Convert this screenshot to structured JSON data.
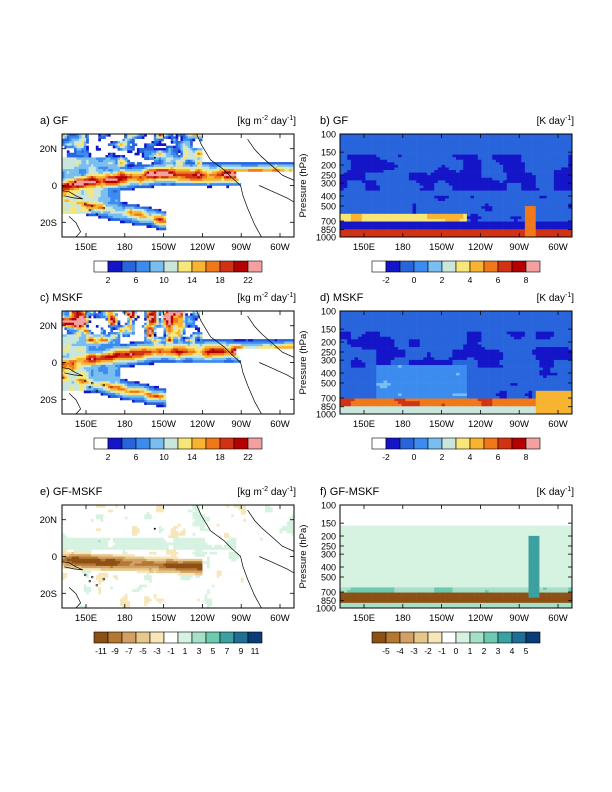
{
  "colors": {
    "precip_scale": [
      "#ffffff",
      "#1414c8",
      "#2864dc",
      "#3c8cf0",
      "#78bef0",
      "#c8e6dc",
      "#f8e678",
      "#f8b430",
      "#f07818",
      "#d23214",
      "#b40000",
      "#f4a0a0"
    ],
    "heating_scale": [
      "#ffffff",
      "#1414c8",
      "#2864dc",
      "#3c8cf0",
      "#78bef0",
      "#c8e6dc",
      "#f8e678",
      "#f8b430",
      "#f07818",
      "#d23214",
      "#b40000",
      "#f4a0a0"
    ],
    "diff_scale": [
      "#8c5014",
      "#b47832",
      "#d2a064",
      "#e6c88c",
      "#f6e6b8",
      "#ffffff",
      "#d6f2e0",
      "#a6e0c8",
      "#6ccab0",
      "#3ca0a0",
      "#1e6e96",
      "#0a3c78"
    ],
    "coast": "#000000"
  },
  "chart_data": [
    {
      "type": "heatmap",
      "panel": "a",
      "title": "a) GF",
      "units_label": "[kg m-2 day-1]",
      "units_parts": {
        "pre": "[kg m",
        "sup1": "-2",
        "mid": " day",
        "sup2": "-1",
        "post": "]"
      },
      "x_ticks": [
        "150E",
        "180",
        "150W",
        "120W",
        "90W",
        "60W"
      ],
      "y_ticks": [
        "20N",
        "0",
        "20S"
      ],
      "colorbar_labels": [
        "2",
        "6",
        "10",
        "14",
        "18",
        "22"
      ],
      "colorbar_levels": [
        2,
        4,
        6,
        8,
        10,
        12,
        14,
        16,
        18,
        20,
        22
      ],
      "pattern": "rain"
    },
    {
      "type": "heatmap",
      "panel": "b",
      "title": "b) GF",
      "units_label": "[K day-1]",
      "units_parts": {
        "pre": "[K day",
        "sup1": "-1",
        "post": "]"
      },
      "x_ticks": [
        "150E",
        "180",
        "150W",
        "120W",
        "90W",
        "60W"
      ],
      "y_ticks": [
        "100",
        "150",
        "200",
        "250",
        "300",
        "400",
        "500",
        "700",
        "850",
        "1000"
      ],
      "ylabel": "Pressure (hPa)",
      "colorbar_labels": [
        "-2",
        "0",
        "2",
        "4",
        "6",
        "8"
      ],
      "colorbar_levels": [
        -2,
        -1,
        0,
        1,
        2,
        3,
        4,
        5,
        6,
        7,
        8
      ],
      "pattern": "heat_gf"
    },
    {
      "type": "heatmap",
      "panel": "c",
      "title": "c) MSKF",
      "units_label": "[kg m-2 day-1]",
      "units_parts": {
        "pre": "[kg m",
        "sup1": "-2",
        "mid": " day",
        "sup2": "-1",
        "post": "]"
      },
      "x_ticks": [
        "150E",
        "180",
        "150W",
        "120W",
        "90W",
        "60W"
      ],
      "y_ticks": [
        "20N",
        "0",
        "20S"
      ],
      "colorbar_labels": [
        "2",
        "6",
        "10",
        "14",
        "18",
        "22"
      ],
      "colorbar_levels": [
        2,
        4,
        6,
        8,
        10,
        12,
        14,
        16,
        18,
        20,
        22
      ],
      "pattern": "rain_mskf"
    },
    {
      "type": "heatmap",
      "panel": "d",
      "title": "d) MSKF",
      "units_label": "[K day-1]",
      "units_parts": {
        "pre": "[K day",
        "sup1": "-1",
        "post": "]"
      },
      "x_ticks": [
        "150E",
        "180",
        "150W",
        "120W",
        "90W",
        "60W"
      ],
      "y_ticks": [
        "100",
        "150",
        "200",
        "250",
        "300",
        "400",
        "500",
        "700",
        "850",
        "1000"
      ],
      "ylabel": "Pressure (hPa)",
      "colorbar_labels": [
        "-2",
        "0",
        "2",
        "4",
        "6",
        "8"
      ],
      "colorbar_levels": [
        -2,
        -1,
        0,
        1,
        2,
        3,
        4,
        5,
        6,
        7,
        8
      ],
      "pattern": "heat_mskf"
    },
    {
      "type": "heatmap",
      "panel": "e",
      "title": "e) GF-MSKF",
      "units_label": "[kg m-2 day-1]",
      "units_parts": {
        "pre": "[kg m",
        "sup1": "-2",
        "mid": " day",
        "sup2": "-1",
        "post": "]"
      },
      "x_ticks": [
        "150E",
        "180",
        "150W",
        "120W",
        "90W",
        "60W"
      ],
      "y_ticks": [
        "20N",
        "0",
        "20S"
      ],
      "colorbar_labels": [
        "-11",
        "-9",
        "-7",
        "-5",
        "-3",
        "-1",
        "1",
        "3",
        "5",
        "7",
        "9",
        "11"
      ],
      "colorbar_levels": [
        -11,
        -9,
        -7,
        -5,
        -3,
        -1,
        1,
        3,
        5,
        7,
        9,
        11
      ],
      "pattern": "rain_diff"
    },
    {
      "type": "heatmap",
      "panel": "f",
      "title": "f) GF-MSKF",
      "units_label": "[K day-1]",
      "units_parts": {
        "pre": "[K day",
        "sup1": "-1",
        "post": "]"
      },
      "x_ticks": [
        "150E",
        "180",
        "150W",
        "120W",
        "90W",
        "60W"
      ],
      "y_ticks": [
        "100",
        "150",
        "200",
        "250",
        "300",
        "400",
        "500",
        "700",
        "850",
        "1000"
      ],
      "ylabel": "Pressure (hPa)",
      "colorbar_labels": [
        "-5",
        "-4",
        "-3",
        "-2",
        "-1",
        "0",
        "1",
        "2",
        "3",
        "4",
        "5"
      ],
      "colorbar_levels": [
        -5,
        -4,
        -3,
        -2,
        -1,
        0,
        1,
        2,
        3,
        4,
        5
      ],
      "pattern": "heat_diff"
    }
  ]
}
